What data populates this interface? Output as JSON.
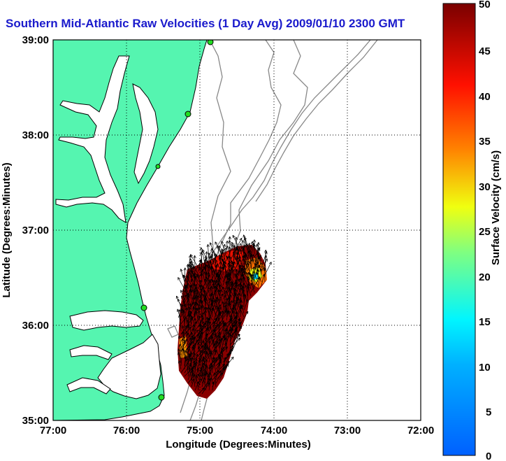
{
  "title": "Southern Mid-Atlantic Raw Velocities (1 Day Avg) 2009/01/10 2300 GMT",
  "map": {
    "xlabel": "Longitude (Degrees:Minutes)",
    "ylabel": "Latitude (Degrees:Minutes)",
    "x_ticks": [
      "77:00",
      "76:00",
      "75:00",
      "74:00",
      "73:00",
      "72:00"
    ],
    "y_ticks": [
      "39:00",
      "38:00",
      "37:00",
      "36:00",
      "35:00"
    ],
    "land_color": "#55f5b0",
    "water_color": "#ffffff",
    "bathymetry_color": "#888888",
    "station_color": "#22dd22"
  },
  "colorbar": {
    "label": "Surface Velocity (cm/s)",
    "ticks": [
      "50",
      "45",
      "40",
      "35",
      "30",
      "25",
      "20",
      "15",
      "10",
      "5",
      "0"
    ],
    "min": 0,
    "max": 50,
    "colormap": "jet"
  }
}
